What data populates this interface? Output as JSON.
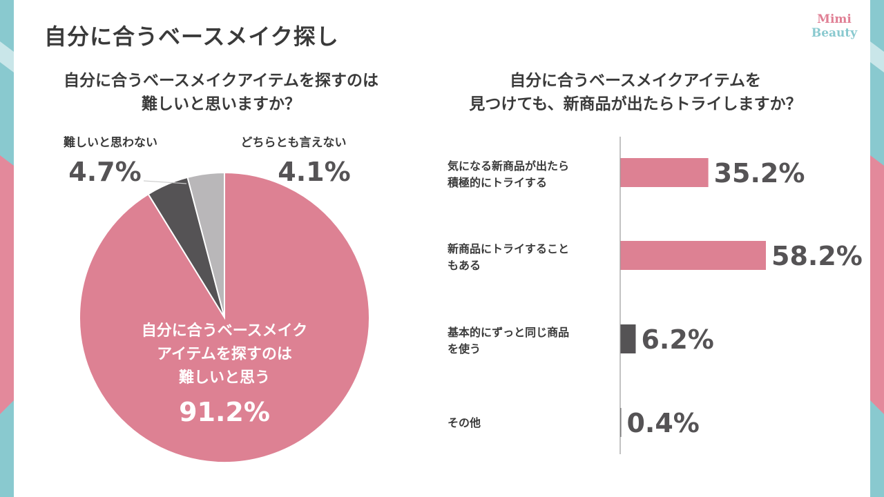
{
  "title": "自分に合うベースメイク探し",
  "logo": {
    "line1": "Mimi",
    "line2": "Beauty"
  },
  "colors": {
    "pink": "#dd8193",
    "dark": "#555355",
    "gray": "#b9b7b9",
    "teal": "#89c9cf",
    "axis": "#9a9a9a"
  },
  "chart_data": [
    {
      "type": "pie",
      "title_lines": [
        "自分に合うベースメイクアイテムを探すのは",
        "難しいと思いますか？"
      ],
      "slices": [
        {
          "name_lines": [
            "自分に合うベースメイク",
            "アイテムを探すのは",
            "難しいと思う"
          ],
          "value": 91.2,
          "label": "91.2%",
          "color": "#dd8193"
        },
        {
          "name_lines": [
            "難しいと思わない"
          ],
          "value": 4.7,
          "label": "4.7%",
          "color": "#555355"
        },
        {
          "name_lines": [
            "どちらとも言えない"
          ],
          "value": 4.1,
          "label": "4.1%",
          "color": "#b9b7b9"
        }
      ]
    },
    {
      "type": "bar",
      "orientation": "horizontal",
      "title_lines": [
        "自分に合うベースメイクアイテムを",
        "見つけても、新商品が出たらトライしますか？"
      ],
      "xlim": [
        0,
        70
      ],
      "categories": [
        {
          "lines": [
            "気になる新商品が出たら",
            "積極的にトライする"
          ]
        },
        {
          "lines": [
            "新商品にトライすること",
            "もある"
          ]
        },
        {
          "lines": [
            "基本的にずっと同じ商品",
            "を使う"
          ]
        },
        {
          "lines": [
            "その他"
          ]
        }
      ],
      "values": [
        35.2,
        58.2,
        6.2,
        0.4
      ],
      "labels": [
        "35.2%",
        "58.2%",
        "6.2%",
        "0.4%"
      ],
      "bar_colors": [
        "#dd8193",
        "#dd8193",
        "#555355",
        "#555355"
      ]
    }
  ]
}
